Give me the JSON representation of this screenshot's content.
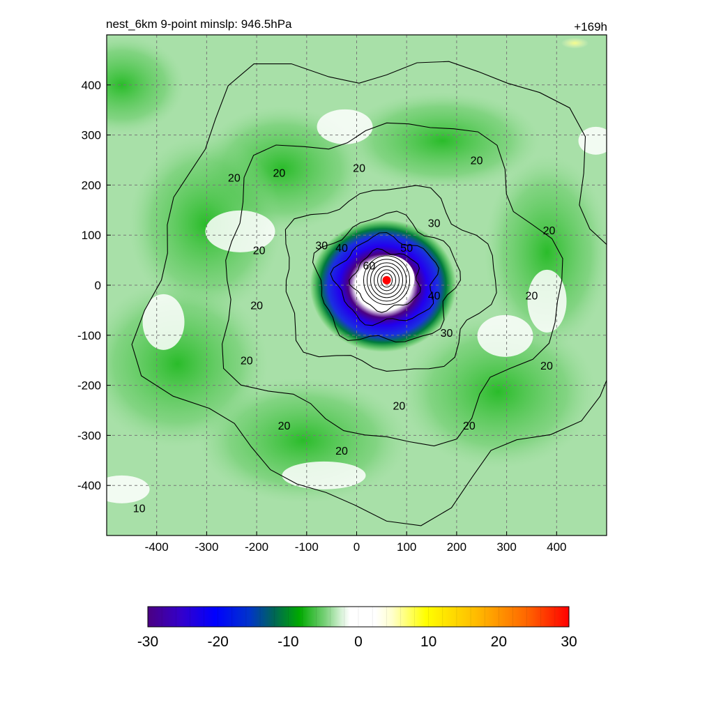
{
  "header": {
    "left_title": "nest_6km  9-point minslp: 946.5hPa",
    "right_title": "+169h"
  },
  "chart_data": {
    "type": "heatmap",
    "title": "nest_6km  9-point minslp: 946.5hPa",
    "time_label": "+169h",
    "xlabel": "",
    "ylabel": "",
    "xlim": [
      -500,
      500
    ],
    "ylim": [
      -500,
      500
    ],
    "x_ticks": [
      -400,
      -300,
      -200,
      -100,
      0,
      100,
      200,
      300,
      400
    ],
    "y_ticks": [
      400,
      300,
      200,
      100,
      0,
      -100,
      -200,
      -300,
      -400
    ],
    "grid": true,
    "storm_center": [
      60,
      10
    ],
    "colorbar": {
      "range": [
        -30,
        30
      ],
      "ticks": [
        -30,
        -20,
        -10,
        0,
        10,
        20,
        30
      ],
      "colors": [
        "#4b0082",
        "#2200ee",
        "#0044dd",
        "#006633",
        "#00b000",
        "#8fd98f",
        "#ffffff",
        "#ffffff",
        "#ffffaa",
        "#ffff00",
        "#ffcc00",
        "#ff8800",
        "#ff0000"
      ]
    },
    "contour_levels": [
      10,
      20,
      30,
      40,
      50,
      60
    ],
    "contour_labels": [
      {
        "text": "20",
        "x": -245,
        "y": 215
      },
      {
        "text": "20",
        "x": -155,
        "y": 225
      },
      {
        "text": "20",
        "x": 5,
        "y": 235
      },
      {
        "text": "20",
        "x": 240,
        "y": 250
      },
      {
        "text": "20",
        "x": 385,
        "y": 110
      },
      {
        "text": "20",
        "x": 350,
        "y": -20
      },
      {
        "text": "20",
        "x": -195,
        "y": 70
      },
      {
        "text": "20",
        "x": -200,
        "y": -40
      },
      {
        "text": "20",
        "x": -220,
        "y": -150
      },
      {
        "text": "20",
        "x": -145,
        "y": -280
      },
      {
        "text": "20",
        "x": -30,
        "y": -330
      },
      {
        "text": "20",
        "x": 85,
        "y": -240
      },
      {
        "text": "20",
        "x": 225,
        "y": -280
      },
      {
        "text": "20",
        "x": 380,
        "y": -160
      },
      {
        "text": "30",
        "x": 155,
        "y": 125
      },
      {
        "text": "30",
        "x": -70,
        "y": 80
      },
      {
        "text": "30",
        "x": 180,
        "y": -95
      },
      {
        "text": "40",
        "x": -30,
        "y": 75
      },
      {
        "text": "40",
        "x": 155,
        "y": -20
      },
      {
        "text": "50",
        "x": 100,
        "y": 75
      },
      {
        "text": "60",
        "x": 25,
        "y": 40
      },
      {
        "text": "10",
        "x": -435,
        "y": -445
      }
    ]
  }
}
